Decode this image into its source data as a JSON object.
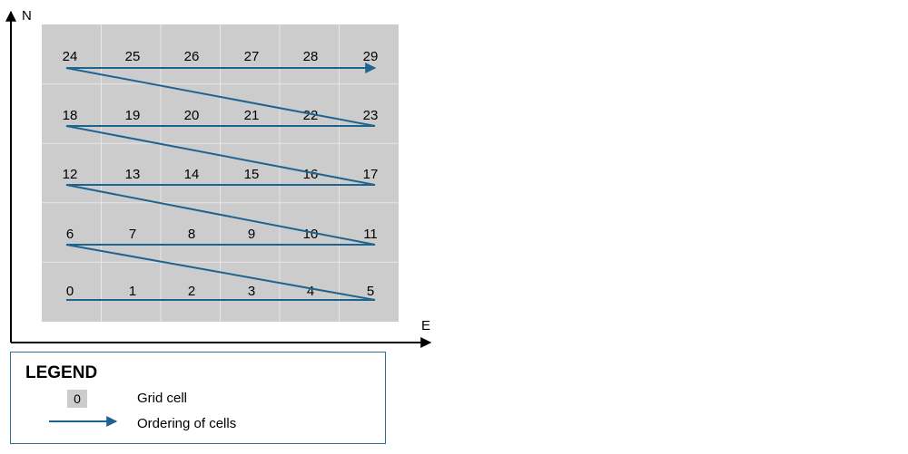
{
  "axes": {
    "north_label": "N",
    "east_label": "E"
  },
  "grid": {
    "rows": [
      [
        "24",
        "25",
        "26",
        "27",
        "28",
        "29"
      ],
      [
        "18",
        "19",
        "20",
        "21",
        "22",
        "23"
      ],
      [
        "12",
        "13",
        "14",
        "15",
        "16",
        "17"
      ],
      [
        "6",
        "7",
        "8",
        "9",
        "10",
        "11"
      ],
      [
        "0",
        "1",
        "2",
        "3",
        "4",
        "5"
      ]
    ],
    "cell_color": "#cccccc",
    "divider_color": "#e6e6e6"
  },
  "ordering_color": "#1f6391",
  "legend": {
    "title": "LEGEND",
    "swatch_label": "0",
    "grid_cell_label": "Grid cell",
    "ordering_label": "Ordering of cells",
    "border_color": "#2a6f97"
  }
}
